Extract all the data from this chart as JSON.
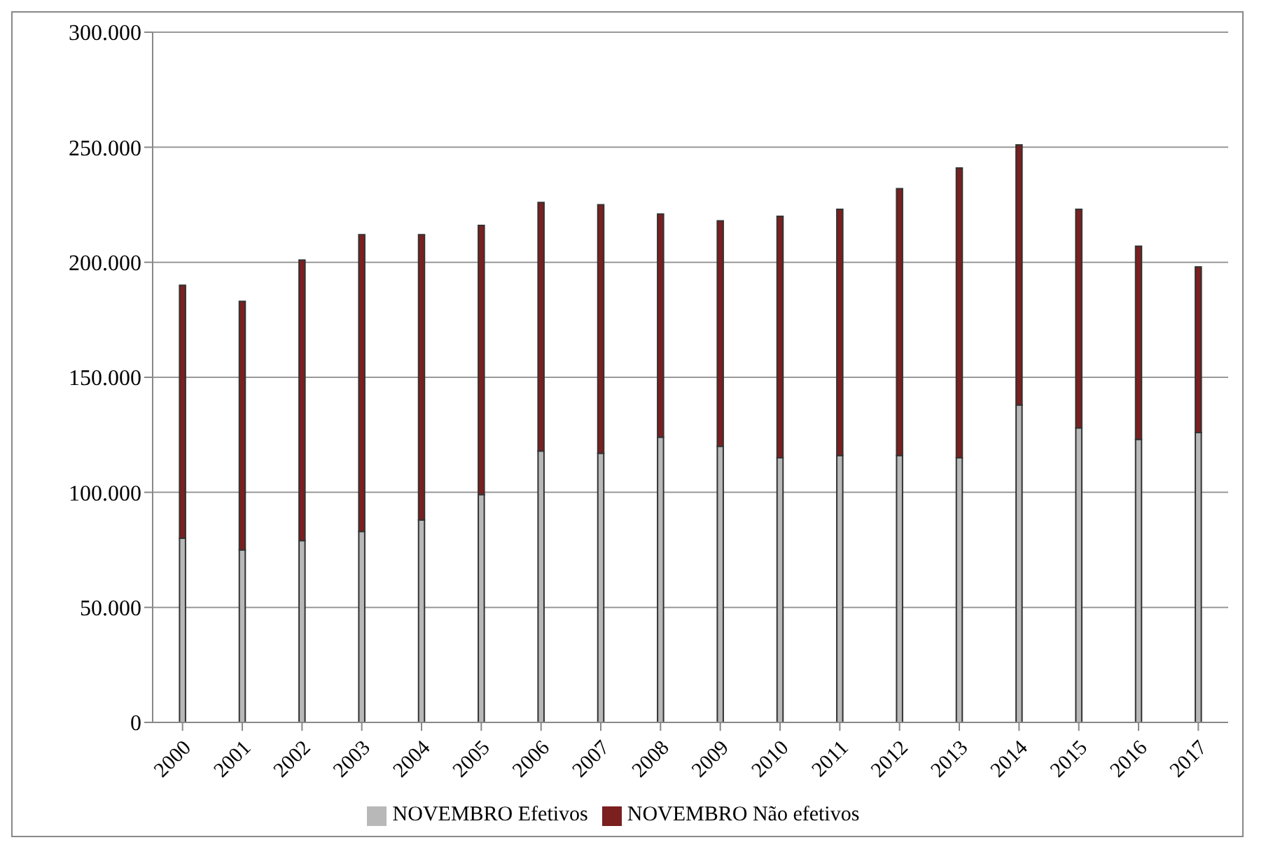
{
  "chart_data": {
    "type": "bar",
    "stacked": true,
    "categories": [
      "2000",
      "2001",
      "2002",
      "2003",
      "2004",
      "2005",
      "2006",
      "2007",
      "2008",
      "2009",
      "2010",
      "2011",
      "2012",
      "2013",
      "2014",
      "2015",
      "2016",
      "2017"
    ],
    "series": [
      {
        "name": "NOVEMBRO Efetivos",
        "color": "#b8b8b8",
        "values": [
          80000,
          75000,
          79000,
          83000,
          88000,
          99000,
          118000,
          117000,
          124000,
          120000,
          115000,
          116000,
          116000,
          115000,
          138000,
          128000,
          123000,
          126000
        ]
      },
      {
        "name": "NOVEMBRO Não efetivos",
        "color": "#7b1f1f",
        "values": [
          110000,
          108000,
          122000,
          129000,
          124000,
          117000,
          108000,
          108000,
          97000,
          98000,
          105000,
          107000,
          116000,
          126000,
          113000,
          95000,
          84000,
          72000
        ]
      }
    ],
    "ylim": [
      0,
      300000
    ],
    "yticks": [
      {
        "value": 0,
        "label": "0"
      },
      {
        "value": 50000,
        "label": "50.000"
      },
      {
        "value": 100000,
        "label": "100.000"
      },
      {
        "value": 150000,
        "label": "150.000"
      },
      {
        "value": 200000,
        "label": "200.000"
      },
      {
        "value": 250000,
        "label": "250.000"
      },
      {
        "value": 300000,
        "label": "300.000"
      }
    ],
    "grid": "y",
    "legend": "bottom"
  }
}
